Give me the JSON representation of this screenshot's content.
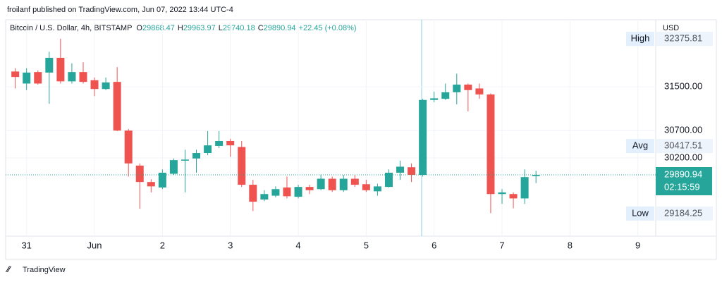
{
  "header": {
    "publisher": "froilanf published on TradingView.com, Jun 07, 2022 13:44 UTC-4"
  },
  "footer": {
    "logo": "TradingView"
  },
  "chart_data": {
    "type": "candlestick",
    "symbol": "Bitcoin / U.S. Dollar, 4h, BITSTAMP",
    "ohlc_prefixes": [
      "O",
      "H",
      "L",
      "C"
    ],
    "change": "+22.45 (+0.08%)",
    "currency": "USD",
    "x": [
      0,
      1,
      2,
      3,
      4,
      5,
      6,
      7,
      8,
      9,
      10,
      11,
      12,
      13,
      14,
      15,
      16,
      17,
      18,
      19,
      20,
      21,
      22,
      23,
      24,
      25,
      26,
      27,
      28,
      29,
      30,
      31,
      32,
      33,
      34,
      35,
      36,
      37,
      38,
      39,
      40,
      41,
      42,
      43,
      44,
      45,
      46
    ],
    "open": [
      31780,
      31560,
      31770,
      31760,
      32030,
      31600,
      31770,
      31620,
      31460,
      31590,
      30700,
      30060,
      29760,
      29660,
      29910,
      30150,
      30190,
      30290,
      30420,
      30510,
      30400,
      29710,
      29440,
      29510,
      29660,
      29490,
      29670,
      29630,
      29820,
      29610,
      29820,
      29720,
      29590,
      29670,
      29930,
      30030,
      29890,
      31260,
      31280,
      31400,
      31540,
      31470,
      31360,
      29540,
      29540,
      29460,
      29868.47
    ],
    "high": [
      31840,
      31840,
      31800,
      32140,
      32380,
      31930,
      31950,
      31670,
      31670,
      31860,
      30730,
      30100,
      29810,
      29990,
      30190,
      30350,
      30350,
      30690,
      30690,
      30550,
      30510,
      29800,
      29610,
      29680,
      29860,
      29710,
      29710,
      29900,
      29860,
      29890,
      29890,
      29800,
      29730,
      29990,
      30150,
      30100,
      31280,
      31410,
      31560,
      31740,
      31560,
      31560,
      31380,
      29630,
      29570,
      29990,
      29963.97
    ],
    "low": [
      31470,
      31440,
      31540,
      31190,
      31560,
      31560,
      31560,
      31330,
      31440,
      30690,
      29860,
      29270,
      29570,
      29630,
      29890,
      29570,
      29930,
      30250,
      30380,
      30220,
      29670,
      29230,
      29410,
      29480,
      29460,
      29460,
      29540,
      29610,
      29580,
      29580,
      29670,
      29580,
      29510,
      29660,
      29800,
      29760,
      29860,
      31220,
      31260,
      31180,
      31050,
      31280,
      29190,
      29360,
      29280,
      29360,
      29740.18
    ],
    "close": [
      31680,
      31760,
      31560,
      32030,
      31600,
      31770,
      31590,
      31460,
      31580,
      30700,
      30100,
      29760,
      29680,
      29930,
      30160,
      30170,
      30290,
      30430,
      30510,
      30430,
      29710,
      29400,
      29540,
      29630,
      29500,
      29670,
      29610,
      29820,
      29610,
      29820,
      29710,
      29610,
      29680,
      29930,
      30040,
      29890,
      31260,
      31290,
      31400,
      31540,
      31440,
      31360,
      29540,
      29570,
      29460,
      29850,
      29890.94
    ],
    "up_color": "#26a69a",
    "down_color": "#ef5350",
    "xlim": [
      -0.85,
      57.2
    ],
    "xticks": [
      {
        "value": 1,
        "label": "31"
      },
      {
        "value": 7,
        "label": "Jun"
      },
      {
        "value": 13,
        "label": "2"
      },
      {
        "value": 19,
        "label": "3"
      },
      {
        "value": 25,
        "label": "4"
      },
      {
        "value": 31,
        "label": "5"
      },
      {
        "value": 37,
        "label": "6"
      },
      {
        "value": 43,
        "label": "7"
      },
      {
        "value": 49,
        "label": "8"
      },
      {
        "value": 55,
        "label": "9"
      }
    ],
    "ylim": [
      28770,
      32700
    ],
    "yticks": [
      {
        "value": 31500,
        "label": "31500.00"
      },
      {
        "value": 30700,
        "label": "30700.00"
      },
      {
        "value": 30200,
        "label": "30200.00"
      }
    ],
    "markers": [
      {
        "label": "High",
        "value": 32375.81
      },
      {
        "label": "Avg",
        "value": 30417.51
      },
      {
        "label": "Low",
        "value": 29184.25
      }
    ],
    "countdown": "02:15:59"
  }
}
